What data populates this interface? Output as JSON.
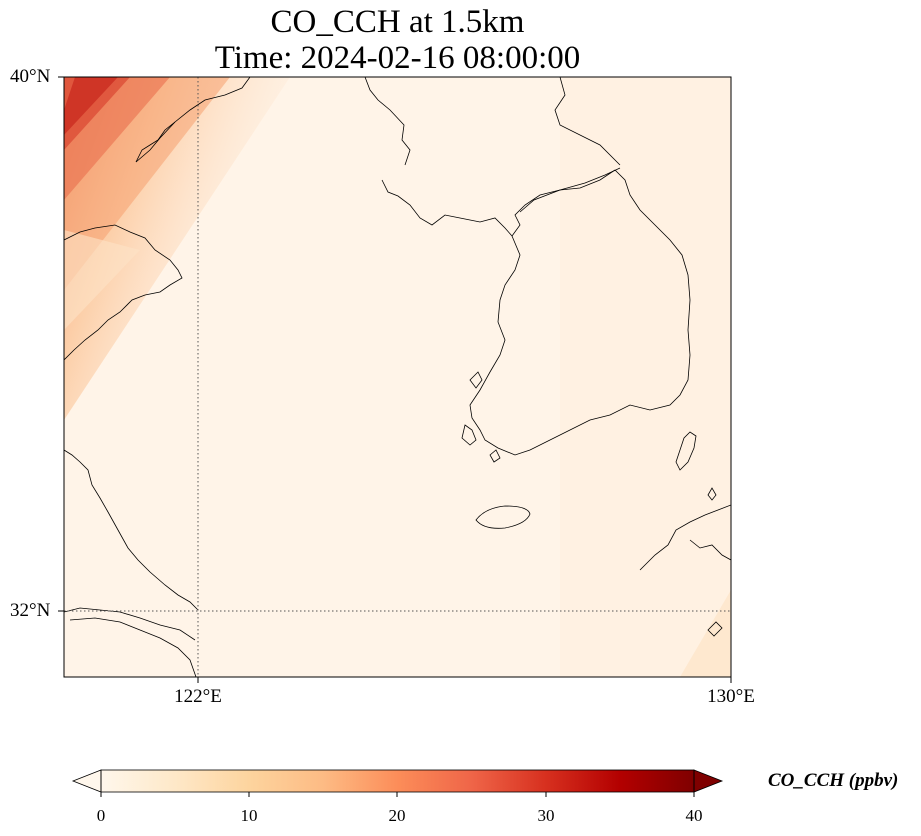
{
  "map": {
    "title_line1": "CO_CCH at 1.5km",
    "title_line2": "Time: 2024-02-16 08:00:00",
    "lat_labels": [
      "40°N",
      "32°N"
    ],
    "lon_labels": [
      "122°E",
      "130°E"
    ],
    "extent": {
      "lon_min": 120,
      "lon_max": 130,
      "lat_min": 31,
      "lat_max": 40
    },
    "gridlines": {
      "lon": [
        122
      ],
      "lat": [
        32
      ],
      "style": "dotted"
    },
    "field": "CO_CCH",
    "level": "1.5km",
    "time": "2024-02-16 08:00:00",
    "colormap": "OrRd"
  },
  "colorbar": {
    "label": "CO_CCH (ppbv)",
    "ticks": [
      "0",
      "10",
      "20",
      "30",
      "40"
    ],
    "min": 0,
    "max": 40,
    "extend": "both",
    "colors": [
      "#fff7ec",
      "#fee8c8",
      "#fdd49e",
      "#fdbb84",
      "#fc8d59",
      "#ef6548",
      "#d7301f",
      "#b30000",
      "#7f0000"
    ]
  }
}
